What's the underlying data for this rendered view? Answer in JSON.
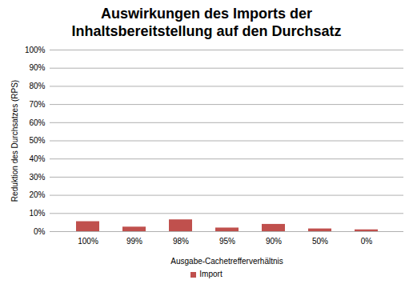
{
  "chart_data": {
    "type": "bar",
    "title": "Auswirkungen des Imports der Inhaltsbereitstellung auf den Durchsatz",
    "x_label": "Ausgabe-Cachetrefferverhältnis",
    "y_label": "Reduktion des Durchsatzes (RPS)",
    "categories": [
      "100%",
      "99%",
      "98%",
      "95%",
      "90%",
      "50%",
      "0%"
    ],
    "series": [
      {
        "name": "Import",
        "color": "#c0504d",
        "values": [
          5.5,
          2.5,
          6.5,
          2,
          4,
          1.5,
          1
        ]
      }
    ],
    "ylim": [
      0,
      100
    ],
    "yticks": [
      {
        "value": 0,
        "label": "0%"
      },
      {
        "value": 10,
        "label": "10%"
      },
      {
        "value": 20,
        "label": "20%"
      },
      {
        "value": 30,
        "label": "30%"
      },
      {
        "value": 40,
        "label": "40%"
      },
      {
        "value": 50,
        "label": "50%"
      },
      {
        "value": 60,
        "label": "60%"
      },
      {
        "value": 70,
        "label": "70%"
      },
      {
        "value": 80,
        "label": "80%"
      },
      {
        "value": 90,
        "label": "90%"
      },
      {
        "value": 100,
        "label": "100%"
      }
    ],
    "grid": true,
    "legend": "bottom"
  }
}
